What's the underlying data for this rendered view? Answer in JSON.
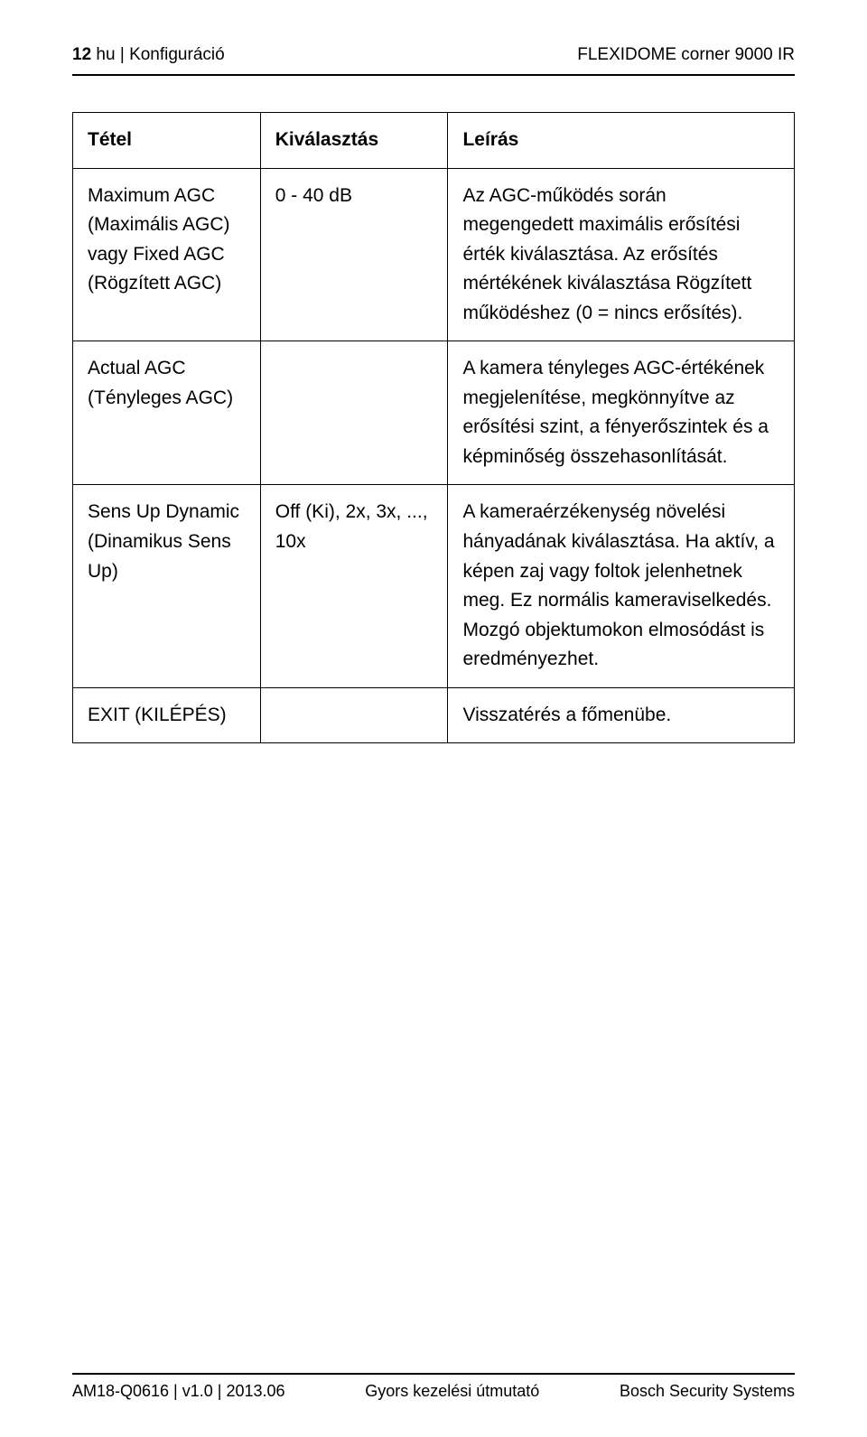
{
  "header": {
    "page_number": "12",
    "lang": "hu",
    "section": "Konfiguráció",
    "product": "FLEXIDOME corner 9000 IR"
  },
  "table": {
    "columns": [
      "Tétel",
      "Kiválasztás",
      "Leírás"
    ],
    "rows": [
      {
        "tetel": "Maximum AGC (Maximális AGC)\nvagy\nFixed AGC (Rögzített AGC)",
        "kivalasztas": "0 - 40 dB",
        "leiras": "Az AGC-működés során megengedett maximális erősítési érték kiválasztása.\nAz erősítés mértékének kiválasztása Rögzített működéshez (0 = nincs erősítés)."
      },
      {
        "tetel": "Actual AGC (Tényleges AGC)",
        "kivalasztas": "",
        "leiras": "A kamera tényleges AGC-értékének megjelenítése, megkönnyítve az erősítési szint, a fényerőszintek és a képminőség összehasonlítását."
      },
      {
        "tetel": "Sens Up Dynamic (Dinamikus Sens Up)",
        "kivalasztas": "Off (Ki), 2x, 3x, ..., 10x",
        "leiras": "A kameraérzékenység növelési hányadának kiválasztása.\nHa aktív, a képen zaj vagy foltok jelenhetnek meg. Ez normális kameraviselkedés. Mozgó objektumokon elmosódást is eredményezhet."
      },
      {
        "tetel": "EXIT (KILÉPÉS)",
        "kivalasztas": "",
        "leiras": "Visszatérés a főmenübe."
      }
    ]
  },
  "footer": {
    "left": "AM18-Q0616 | v1.0 | 2013.06",
    "center": "Gyors kezelési útmutató",
    "right": "Bosch Security Systems"
  }
}
